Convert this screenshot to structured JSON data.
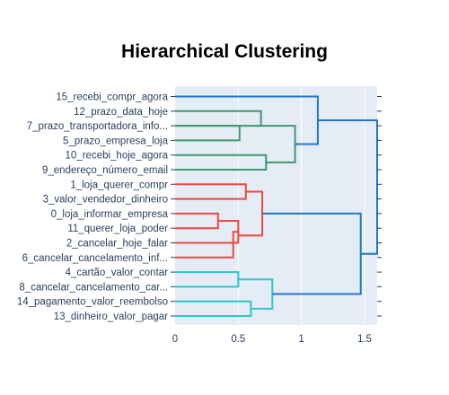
{
  "chart_data": {
    "type": "dendrogram",
    "title": "Hierarchical Clustering",
    "xlim": [
      0,
      1.6
    ],
    "x_ticks": [
      0,
      0.5,
      1,
      1.5
    ],
    "x_tick_labels": [
      "0",
      "0.5",
      "1",
      "1.5"
    ],
    "plot_background": "#e5ecf6",
    "colors": {
      "root": "#1f77cc",
      "green": "#3d9970",
      "red": "#f0483c",
      "cyan": "#2ac6d0",
      "axis_text": "#2a3f5f"
    },
    "leaves": [
      "15_recebi_compr_agora",
      "12_prazo_data_hoje",
      "7_prazo_transportadora_info...",
      "5_prazo_empresa_loja",
      "10_recebi_hoje_agora",
      "9_endereço_número_email",
      "1_loja_querer_compr",
      "3_valor_vendedor_dinheiro",
      "0_loja_informar_empresa",
      "11_querer_loja_poder",
      "2_cancelar_hoje_falar",
      "6_cancelar_cancelamento_inf...",
      "4_cartão_valor_contar",
      "8_cancelar_cancelamento_car...",
      "14_pagamento_valor_reembolso",
      "13_dinheiro_valor_pagar"
    ],
    "merges": [
      {
        "left": "L7",
        "right": "L8",
        "height": 0.68,
        "color": "green"
      },
      {
        "left": "L12",
        "right": "L5",
        "height": 0.52,
        "color": "green"
      },
      {
        "left": "L10",
        "right": "L9",
        "height": 0.72,
        "color": "green"
      },
      {
        "left": "L1",
        "right": "L3",
        "height": 0.56,
        "color": "red"
      },
      {
        "left": "L0",
        "right": "L11",
        "height": 0.34,
        "color": "red"
      },
      {
        "left": "L2",
        "right": "L6",
        "height": 0.46,
        "color": "red"
      },
      {
        "left": "L4",
        "right": "L8b",
        "height": 0.5,
        "color": "cyan"
      },
      {
        "left": "L14",
        "right": "L13",
        "height": 0.6,
        "color": "cyan"
      }
    ]
  }
}
